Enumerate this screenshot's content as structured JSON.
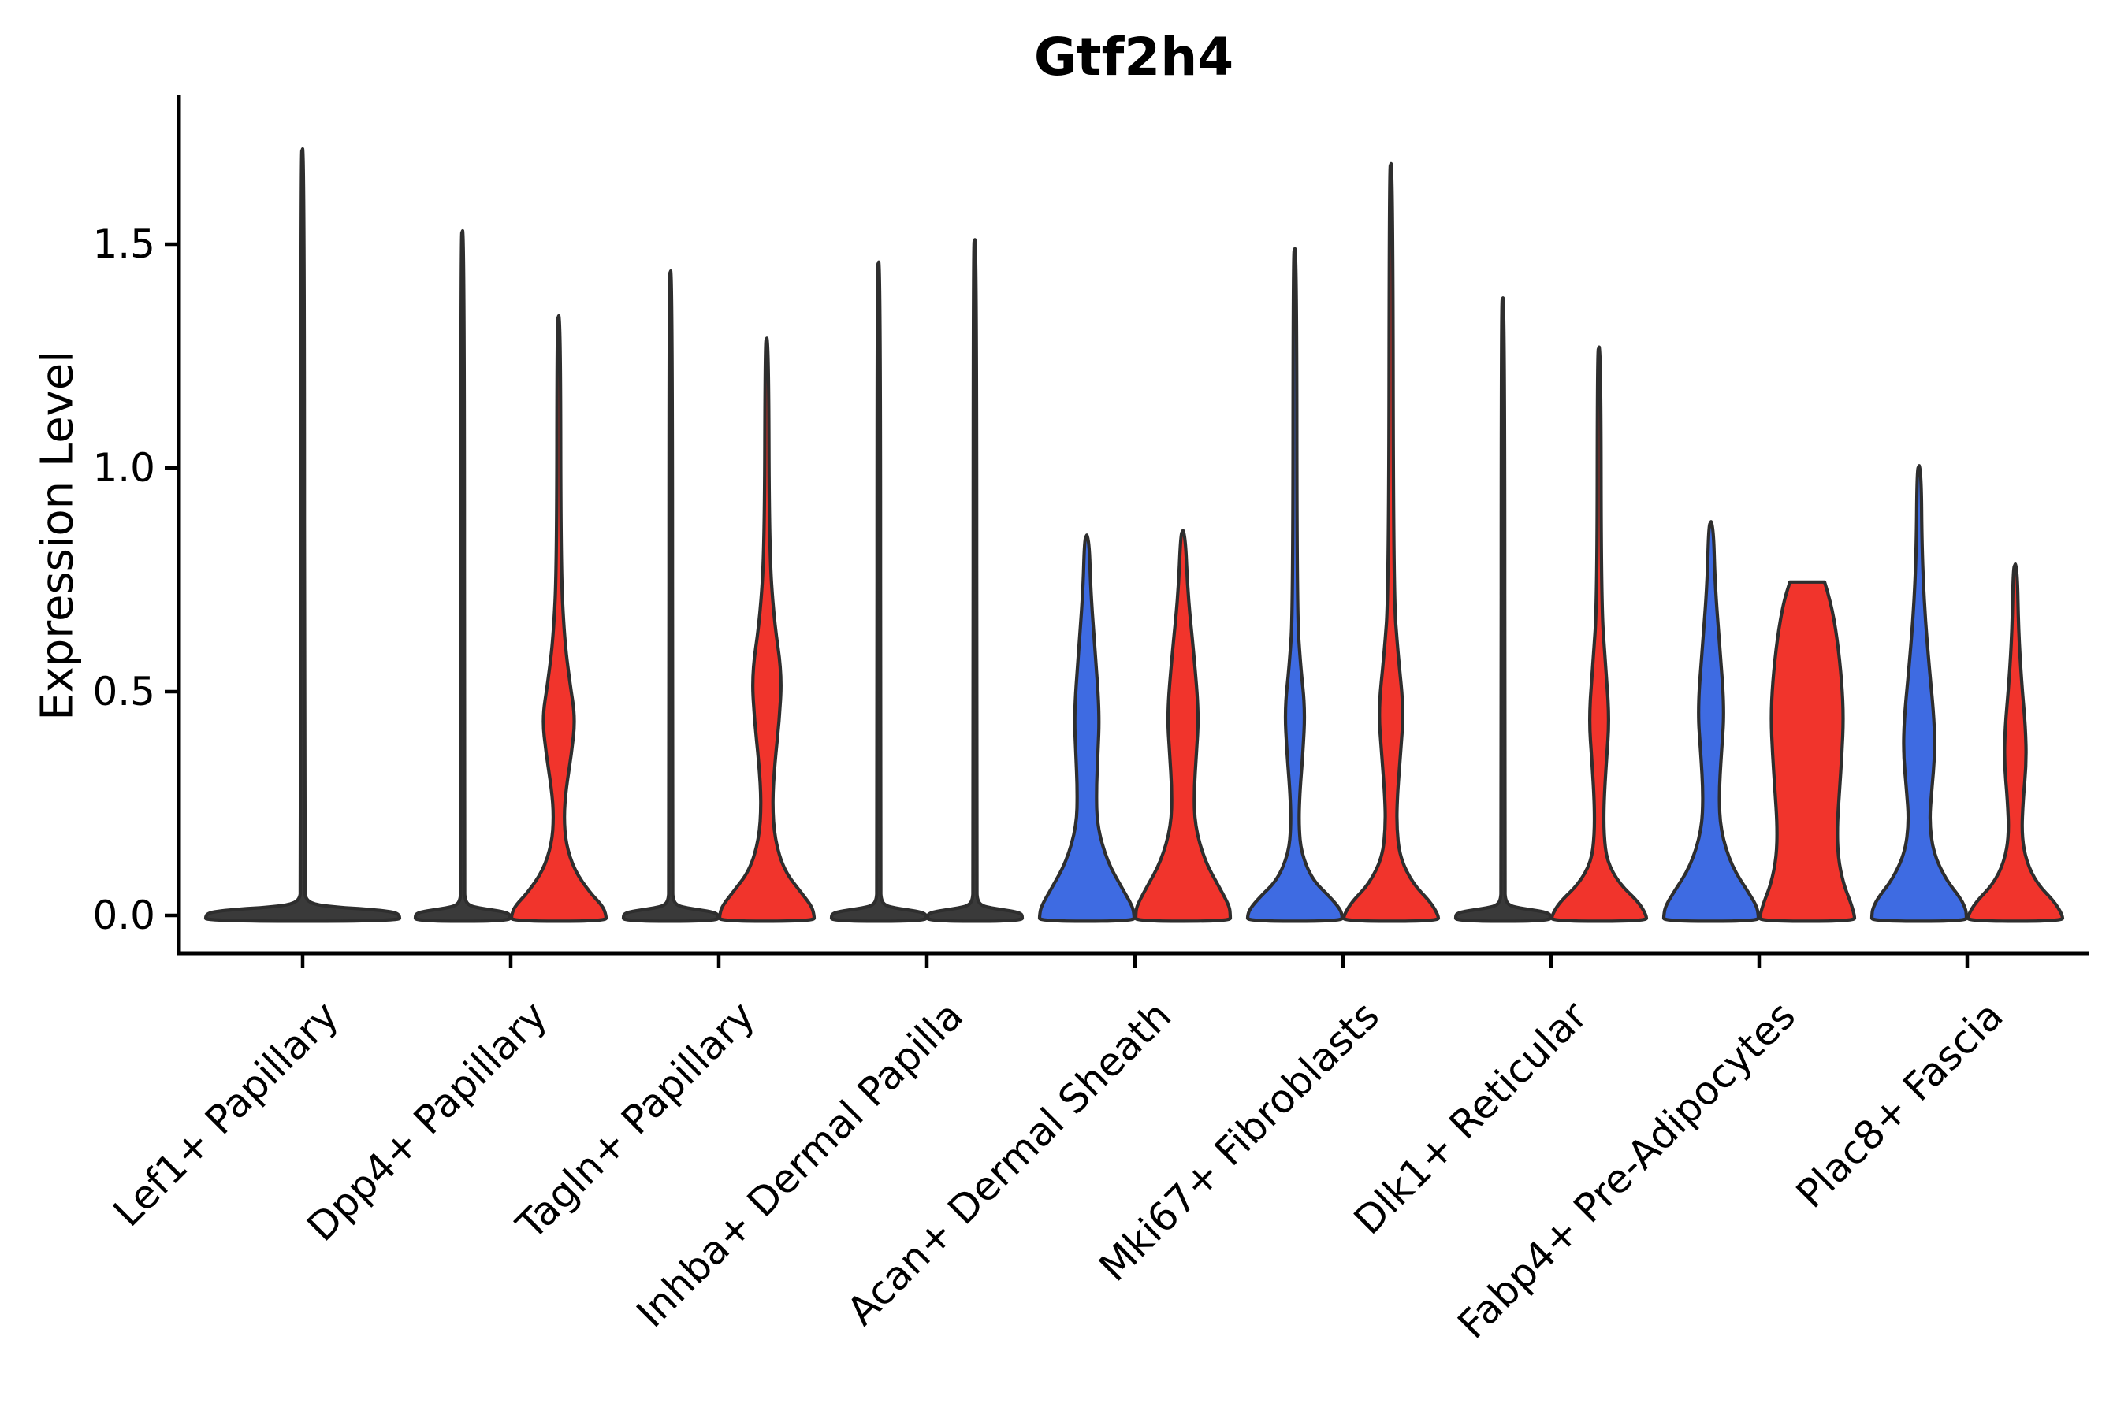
{
  "chart_data": {
    "type": "violin",
    "title": "Gtf2h4",
    "ylabel": "Expression Level",
    "xlabel": "",
    "grid": false,
    "legend": "none",
    "ylim": [
      -0.07,
      1.84
    ],
    "yticks": [
      {
        "label": "0.0",
        "value": 0.0
      },
      {
        "label": "0.5",
        "value": 0.5
      },
      {
        "label": "1.0",
        "value": 1.0
      },
      {
        "label": "1.5",
        "value": 1.5
      }
    ],
    "categories": [
      "Lef1+ Papillary",
      "Dpp4+ Papillary",
      "Tagln+ Papillary",
      "Inhba+ Dermal Papilla",
      "Acan+ Dermal Sheath",
      "Mki67+ Fibroblasts",
      "Dlk1+ Reticular",
      "Fabp4+ Pre-Adipocytes",
      "Plac8+ Fascia"
    ],
    "colors": {
      "blue": "#3E6BE2",
      "red": "#F1342C",
      "flat_fill": "#3A3A3A",
      "edge": "#2E2E2E",
      "axis": "#000000"
    },
    "note": "Each category holds a blue (left) and red (right) violin; violins collapsed to a flat line at 0 are marked flat. max = highest expression value reached; profile = [expression value, half-width px] pairs top-to-bottom.",
    "violins": [
      {
        "category_index": 0,
        "position": "single",
        "color": "flat",
        "flat": true,
        "max": 1.71,
        "profile": [
          [
            1.713,
            0
          ],
          [
            1.703,
            2.2
          ],
          [
            0.06,
            2.2
          ],
          [
            0.035,
            4
          ],
          [
            0.024,
            16
          ],
          [
            0.018,
            45
          ],
          [
            0.014,
            80
          ],
          [
            0.01,
            105
          ],
          [
            0.006,
            118
          ],
          [
            0,
            123
          ]
        ]
      },
      {
        "category_index": 1,
        "position": "left",
        "color": "flat",
        "flat": true,
        "max": 1.53,
        "profile": [
          [
            1.53,
            0
          ],
          [
            1.52,
            2.2
          ],
          [
            0.06,
            2.2
          ],
          [
            0.035,
            3
          ],
          [
            0.022,
            8
          ],
          [
            0.016,
            22
          ],
          [
            0.012,
            38
          ],
          [
            0.008,
            52
          ],
          [
            0.004,
            58
          ],
          [
            0,
            60
          ]
        ]
      },
      {
        "category_index": 1,
        "position": "right",
        "color": "red",
        "flat": false,
        "max": 1.34,
        "profile": [
          [
            1.34,
            0
          ],
          [
            1.33,
            2.2
          ],
          [
            0.78,
            2.6
          ],
          [
            0.62,
            7
          ],
          [
            0.52,
            14
          ],
          [
            0.44,
            21
          ],
          [
            0.36,
            16
          ],
          [
            0.28,
            9
          ],
          [
            0.22,
            6.5
          ],
          [
            0.16,
            9
          ],
          [
            0.1,
            20
          ],
          [
            0.05,
            40
          ],
          [
            0.02,
            56
          ],
          [
            0,
            60
          ]
        ]
      },
      {
        "category_index": 2,
        "position": "left",
        "color": "flat",
        "flat": true,
        "max": 1.44,
        "profile": [
          [
            1.44,
            0
          ],
          [
            1.43,
            2.2
          ],
          [
            0.06,
            2.2
          ],
          [
            0.035,
            3
          ],
          [
            0.022,
            8
          ],
          [
            0.016,
            22
          ],
          [
            0.012,
            38
          ],
          [
            0.008,
            52
          ],
          [
            0.004,
            58
          ],
          [
            0,
            60
          ]
        ]
      },
      {
        "category_index": 2,
        "position": "right",
        "color": "red",
        "flat": false,
        "max": 1.29,
        "profile": [
          [
            1.29,
            0
          ],
          [
            1.28,
            2.2
          ],
          [
            0.82,
            3
          ],
          [
            0.66,
            9
          ],
          [
            0.54,
            19
          ],
          [
            0.44,
            16
          ],
          [
            0.34,
            10
          ],
          [
            0.25,
            7
          ],
          [
            0.17,
            10
          ],
          [
            0.1,
            22
          ],
          [
            0.05,
            44
          ],
          [
            0.02,
            57
          ],
          [
            0,
            60
          ]
        ]
      },
      {
        "category_index": 3,
        "position": "left",
        "color": "flat",
        "flat": true,
        "max": 1.46,
        "profile": [
          [
            1.46,
            0
          ],
          [
            1.45,
            2.2
          ],
          [
            0.06,
            2.2
          ],
          [
            0.035,
            3
          ],
          [
            0.022,
            8
          ],
          [
            0.016,
            22
          ],
          [
            0.012,
            38
          ],
          [
            0.008,
            52
          ],
          [
            0.004,
            58
          ],
          [
            0,
            60
          ]
        ]
      },
      {
        "category_index": 3,
        "position": "right",
        "color": "flat",
        "flat": true,
        "max": 1.51,
        "profile": [
          [
            1.51,
            0
          ],
          [
            1.5,
            2.2
          ],
          [
            0.06,
            2.2
          ],
          [
            0.035,
            3
          ],
          [
            0.022,
            8
          ],
          [
            0.016,
            22
          ],
          [
            0.012,
            38
          ],
          [
            0.008,
            52
          ],
          [
            0.004,
            58
          ],
          [
            0,
            60
          ]
        ]
      },
      {
        "category_index": 4,
        "position": "left",
        "color": "blue",
        "flat": false,
        "max": 0.85,
        "profile": [
          [
            0.85,
            0
          ],
          [
            0.84,
            3
          ],
          [
            0.72,
            5
          ],
          [
            0.58,
            11
          ],
          [
            0.45,
            16
          ],
          [
            0.36,
            14
          ],
          [
            0.28,
            12
          ],
          [
            0.2,
            13
          ],
          [
            0.12,
            26
          ],
          [
            0.06,
            45
          ],
          [
            0.02,
            58
          ],
          [
            0,
            60
          ]
        ]
      },
      {
        "category_index": 4,
        "position": "right",
        "color": "red",
        "flat": false,
        "max": 0.86,
        "profile": [
          [
            0.86,
            0
          ],
          [
            0.85,
            3
          ],
          [
            0.72,
            6
          ],
          [
            0.58,
            14
          ],
          [
            0.45,
            20
          ],
          [
            0.36,
            17
          ],
          [
            0.28,
            14
          ],
          [
            0.2,
            15
          ],
          [
            0.12,
            28
          ],
          [
            0.06,
            47
          ],
          [
            0.02,
            59
          ],
          [
            0,
            60
          ]
        ]
      },
      {
        "category_index": 5,
        "position": "left",
        "color": "blue",
        "flat": false,
        "max": 1.49,
        "profile": [
          [
            1.49,
            0
          ],
          [
            1.48,
            2.2
          ],
          [
            0.68,
            2.6
          ],
          [
            0.56,
            7
          ],
          [
            0.46,
            13
          ],
          [
            0.36,
            10
          ],
          [
            0.27,
            6
          ],
          [
            0.2,
            5
          ],
          [
            0.14,
            8
          ],
          [
            0.08,
            22
          ],
          [
            0.04,
            45
          ],
          [
            0.015,
            57
          ],
          [
            0,
            60
          ]
        ]
      },
      {
        "category_index": 5,
        "position": "right",
        "color": "red",
        "flat": false,
        "max": 1.68,
        "profile": [
          [
            1.68,
            0
          ],
          [
            1.67,
            2.2
          ],
          [
            0.72,
            3
          ],
          [
            0.58,
            9
          ],
          [
            0.46,
            16
          ],
          [
            0.36,
            12
          ],
          [
            0.27,
            8
          ],
          [
            0.2,
            7
          ],
          [
            0.13,
            11
          ],
          [
            0.07,
            28
          ],
          [
            0.03,
            50
          ],
          [
            0,
            60
          ]
        ]
      },
      {
        "category_index": 6,
        "position": "left",
        "color": "flat",
        "flat": true,
        "max": 1.38,
        "profile": [
          [
            1.38,
            0
          ],
          [
            1.37,
            2.2
          ],
          [
            0.06,
            2.2
          ],
          [
            0.035,
            3
          ],
          [
            0.022,
            8
          ],
          [
            0.016,
            22
          ],
          [
            0.012,
            38
          ],
          [
            0.008,
            52
          ],
          [
            0.004,
            58
          ],
          [
            0,
            60
          ]
        ]
      },
      {
        "category_index": 6,
        "position": "right",
        "color": "red",
        "flat": false,
        "max": 1.27,
        "profile": [
          [
            1.27,
            0
          ],
          [
            1.26,
            2.2
          ],
          [
            0.7,
            2.6
          ],
          [
            0.56,
            8
          ],
          [
            0.44,
            13
          ],
          [
            0.34,
            9
          ],
          [
            0.25,
            6
          ],
          [
            0.18,
            6
          ],
          [
            0.12,
            10
          ],
          [
            0.07,
            26
          ],
          [
            0.03,
            50
          ],
          [
            0,
            60
          ]
        ]
      },
      {
        "category_index": 7,
        "position": "left",
        "color": "blue",
        "flat": false,
        "max": 0.88,
        "profile": [
          [
            0.88,
            0
          ],
          [
            0.87,
            3
          ],
          [
            0.74,
            5
          ],
          [
            0.6,
            11
          ],
          [
            0.46,
            17
          ],
          [
            0.36,
            13
          ],
          [
            0.27,
            10
          ],
          [
            0.19,
            12
          ],
          [
            0.11,
            26
          ],
          [
            0.05,
            48
          ],
          [
            0.02,
            58
          ],
          [
            0,
            60
          ]
        ]
      },
      {
        "category_index": 7,
        "position": "right",
        "color": "red",
        "flat": false,
        "max": 0.745,
        "profile": [
          [
            0.745,
            22
          ],
          [
            0.7,
            30
          ],
          [
            0.62,
            38
          ],
          [
            0.52,
            44
          ],
          [
            0.44,
            46
          ],
          [
            0.36,
            44
          ],
          [
            0.28,
            41
          ],
          [
            0.2,
            38
          ],
          [
            0.13,
            39
          ],
          [
            0.07,
            46
          ],
          [
            0.03,
            55
          ],
          [
            0,
            60
          ]
        ]
      },
      {
        "category_index": 8,
        "position": "left",
        "color": "blue",
        "flat": false,
        "max": 1.0,
        "profile": [
          [
            1.005,
            0
          ],
          [
            0.995,
            2.6
          ],
          [
            0.82,
            3.5
          ],
          [
            0.68,
            7
          ],
          [
            0.55,
            13
          ],
          [
            0.44,
            19
          ],
          [
            0.36,
            20
          ],
          [
            0.28,
            16
          ],
          [
            0.21,
            13
          ],
          [
            0.14,
            18
          ],
          [
            0.08,
            34
          ],
          [
            0.04,
            52
          ],
          [
            0.015,
            59
          ],
          [
            0,
            60
          ]
        ]
      },
      {
        "category_index": 8,
        "position": "right",
        "color": "red",
        "flat": false,
        "max": 0.785,
        "profile": [
          [
            0.785,
            0
          ],
          [
            0.775,
            2.6
          ],
          [
            0.64,
            4
          ],
          [
            0.52,
            8
          ],
          [
            0.42,
            13
          ],
          [
            0.34,
            14
          ],
          [
            0.26,
            10
          ],
          [
            0.18,
            8
          ],
          [
            0.12,
            14
          ],
          [
            0.07,
            28
          ],
          [
            0.03,
            50
          ],
          [
            0,
            60
          ]
        ]
      }
    ]
  }
}
